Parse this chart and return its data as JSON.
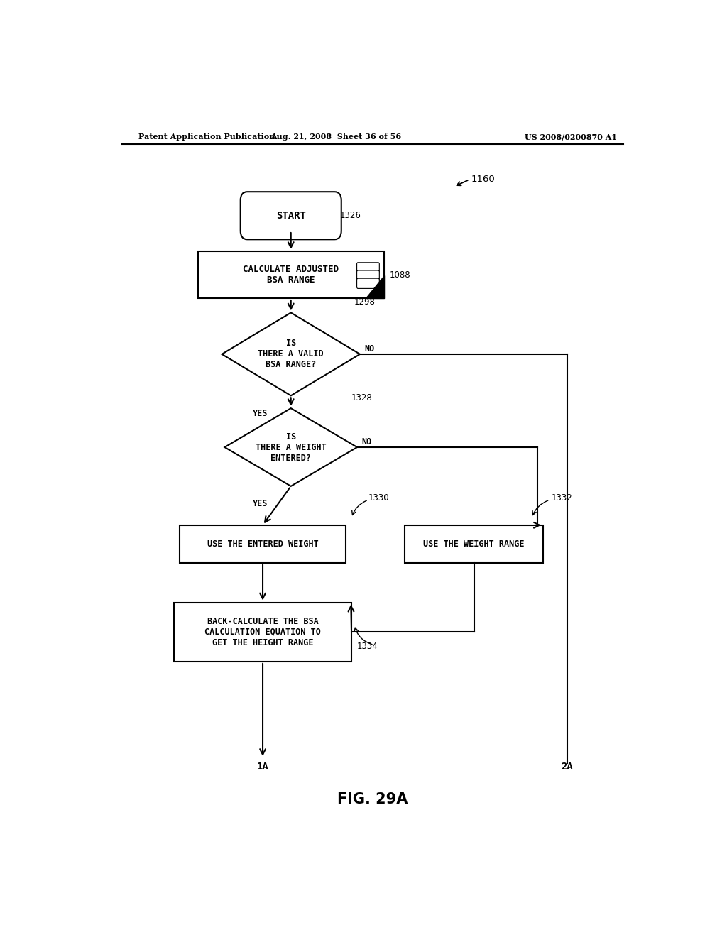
{
  "bg_color": "#ffffff",
  "header_left": "Patent Application Publication",
  "header_mid": "Aug. 21, 2008  Sheet 36 of 56",
  "header_right": "US 2008/0200870 A1",
  "fig_label": "1160",
  "title": "FIG. 29A",
  "start_label": "START",
  "start_ref": "1326",
  "calc_label": "CALCULATE ADJUSTED\nBSA RANGE",
  "calc_ref": "1088",
  "d1_label": "IS\nTHERE A VALID\nBSA RANGE?",
  "d1_ref": "1298",
  "d2_label": "IS\nTHERE A WEIGHT\nENTERED?",
  "d2_ref": "1328",
  "box_ew_label": "USE THE ENTERED WEIGHT",
  "box_ew_ref": "1330",
  "box_wr_label": "USE THE WEIGHT RANGE",
  "box_wr_ref": "1332",
  "back_label": "BACK-CALCULATE THE BSA\nCALCULATION EQUATION TO\nGET THE HEIGHT RANGE",
  "back_ref": "1334",
  "conn_1a": "1A",
  "conn_2a": "2A",
  "yes_label": "YES",
  "no_label": "NO"
}
